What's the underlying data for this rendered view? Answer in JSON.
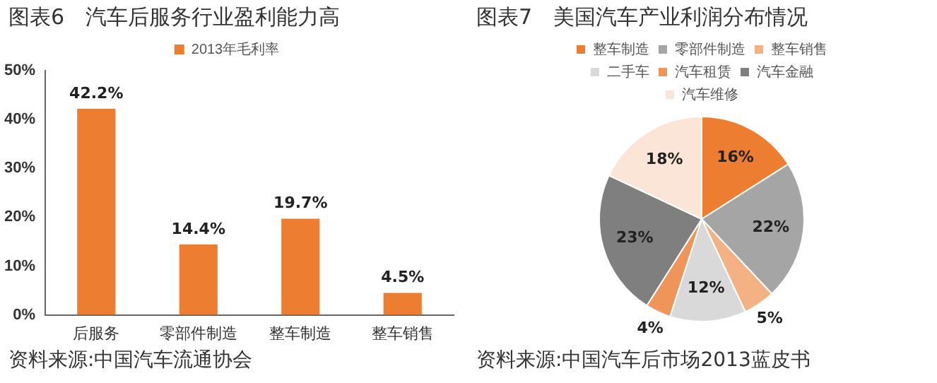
{
  "chart_data": [
    {
      "type": "bar",
      "title": "图表6　汽车后服务行业盈利能力高",
      "categories": [
        "后服务",
        "零部件制造",
        "整车制造",
        "整车销售"
      ],
      "series": [
        {
          "name": "2013年毛利率",
          "color": "#ed7d31",
          "values": [
            42.2,
            14.4,
            19.7,
            4.5
          ],
          "value_labels": [
            "42.2%",
            "14.4%",
            "19.7%",
            "4.5%"
          ]
        }
      ],
      "ylim": [
        0,
        50
      ],
      "yticks": [
        {
          "value": 0,
          "label": "0%"
        },
        {
          "value": 10,
          "label": "10%"
        },
        {
          "value": 20,
          "label": "20%"
        },
        {
          "value": 30,
          "label": "30%"
        },
        {
          "value": 40,
          "label": "40%"
        },
        {
          "value": 50,
          "label": "50%"
        }
      ],
      "grid": false,
      "legend": "top",
      "annotations": [
        "资料来源:中国汽车流通协会"
      ]
    },
    {
      "type": "pie",
      "title": "图表7　美国汽车产业利润分布情况",
      "categories": [
        "整车制造",
        "零部件制造",
        "整车销售",
        "二手车",
        "汽车租赁",
        "汽车金融",
        "汽车维修"
      ],
      "values": [
        16,
        22,
        5,
        12,
        4,
        23,
        18
      ],
      "value_labels": [
        "16%",
        "22%",
        "5%",
        "12%",
        "4%",
        "23%",
        "18%"
      ],
      "colors": [
        "#ed7d31",
        "#a5a5a5",
        "#f4b183",
        "#d9d9d9",
        "#f0955a",
        "#7f7f7f",
        "#fbe5d6"
      ],
      "legend": "top",
      "annotations": [
        "资料来源:中国汽车后市场2013蓝皮书"
      ]
    }
  ]
}
